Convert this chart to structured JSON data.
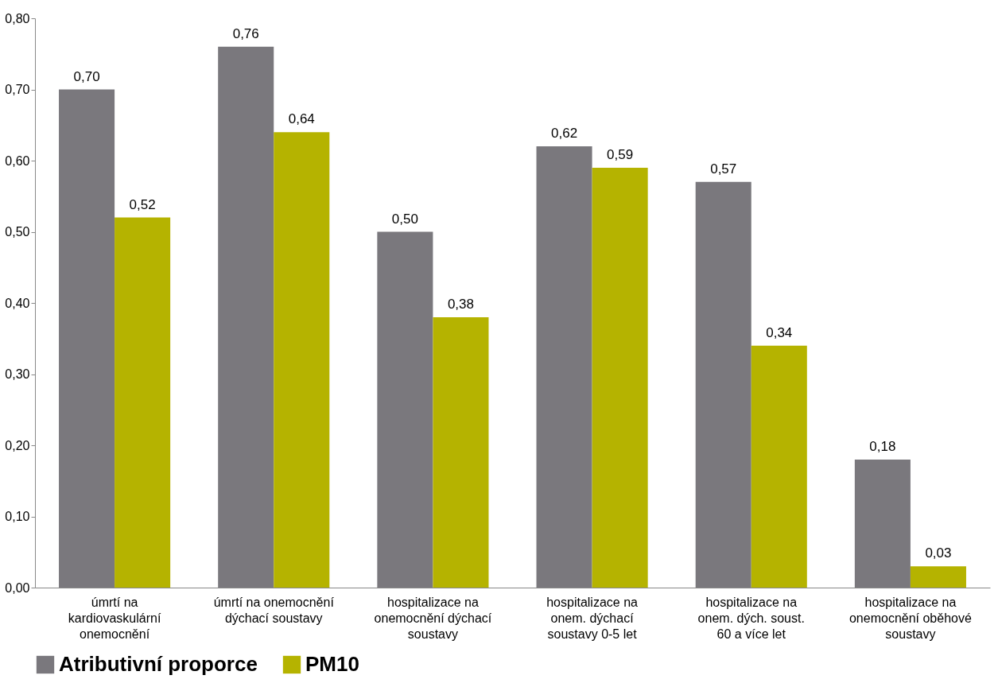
{
  "chart_data": {
    "type": "bar",
    "categories": [
      "úmrtí na kardiovaskulární onemocnění",
      "úmrtí na onemocnění dýchací soustavy",
      "hospitalizace na onemocnění dýchací soustavy",
      "hospitalizace na onem. dýchací soustavy 0-5 let",
      "hospitalizace na onem. dých. soust. 60 a více let",
      "hospitalizace na onemocnění oběhové soustavy"
    ],
    "series": [
      {
        "name": "Atributivní proporce",
        "color": "#7a787d",
        "values": [
          0.7,
          0.76,
          0.5,
          0.62,
          0.57,
          0.18
        ],
        "value_labels": [
          "0,70",
          "0,76",
          "0,50",
          "0,62",
          "0,57",
          "0,18"
        ]
      },
      {
        "name": "PM10",
        "color": "#b5b300",
        "values": [
          0.52,
          0.64,
          0.38,
          0.59,
          0.34,
          0.03
        ],
        "value_labels": [
          "0,52",
          "0,64",
          "0,38",
          "0,59",
          "0,34",
          "0,03"
        ]
      }
    ],
    "ylim": [
      0,
      0.8
    ],
    "yticks": [
      {
        "value": 0,
        "label": "0,00"
      },
      {
        "value": 0.1,
        "label": "0,10"
      },
      {
        "value": 0.2,
        "label": "0,20"
      },
      {
        "value": 0.3,
        "label": "0,30"
      },
      {
        "value": 0.4,
        "label": "0,40"
      },
      {
        "value": 0.5,
        "label": "0,50"
      },
      {
        "value": 0.6,
        "label": "0,60"
      },
      {
        "value": 0.7,
        "label": "0,70"
      },
      {
        "value": 0.8,
        "label": "0,80"
      }
    ],
    "grid": false,
    "legend": "bottom"
  }
}
